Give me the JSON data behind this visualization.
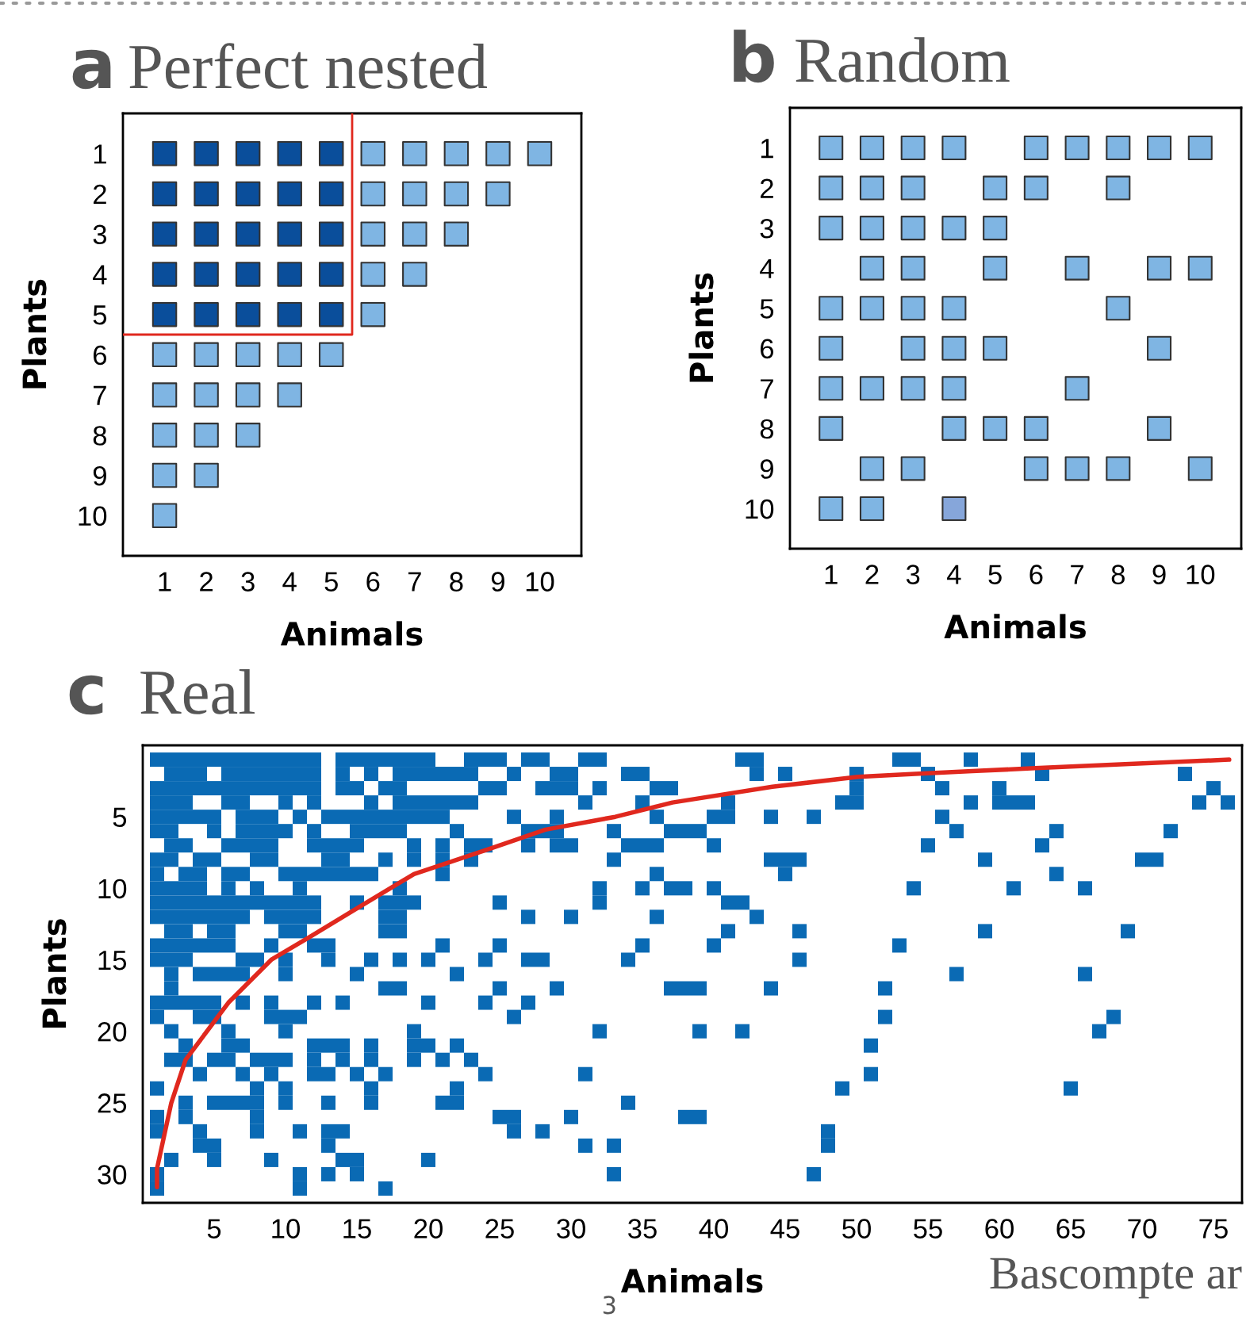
{
  "chart_data": [
    {
      "type": "scatter",
      "title": "Perfect nested",
      "xlabel": "Animals",
      "ylabel": "Plants",
      "annotations": [
        "a"
      ],
      "marker": "square",
      "grid": false,
      "xlim": [
        0,
        11
      ],
      "ylim": [
        11,
        0
      ],
      "xticks": [
        1,
        2,
        3,
        4,
        5,
        6,
        7,
        8,
        9,
        10
      ],
      "yticks": [
        1,
        2,
        3,
        4,
        5,
        6,
        7,
        8,
        9,
        10
      ],
      "series": [
        {
          "color": "#0a4e9b",
          "x": [
            1,
            2,
            3,
            4,
            5,
            1,
            2,
            3,
            4,
            5,
            1,
            2,
            3,
            4,
            5,
            1,
            2,
            3,
            4,
            5,
            1,
            2,
            3,
            4,
            5
          ],
          "values": [
            1,
            1,
            1,
            1,
            1,
            2,
            2,
            2,
            2,
            2,
            3,
            3,
            3,
            3,
            3,
            4,
            4,
            4,
            4,
            4,
            5,
            5,
            5,
            5,
            5
          ]
        },
        {
          "color": "#7fb5e3",
          "x": [
            6,
            7,
            8,
            9,
            10,
            6,
            7,
            8,
            9,
            6,
            7,
            8,
            6,
            7,
            6,
            1,
            2,
            3,
            4,
            5,
            1,
            2,
            3,
            4,
            1,
            2,
            3,
            1,
            2,
            1
          ],
          "values": [
            1,
            1,
            1,
            1,
            1,
            2,
            2,
            2,
            2,
            3,
            3,
            3,
            4,
            4,
            5,
            6,
            6,
            6,
            6,
            6,
            7,
            7,
            7,
            7,
            8,
            8,
            8,
            9,
            9,
            10
          ]
        },
        {
          "type": "line",
          "marker": "none",
          "color": "#e0281e",
          "x": [
            5.5,
            5.5,
            0
          ],
          "values": [
            0,
            5.5,
            5.5
          ]
        }
      ]
    },
    {
      "type": "scatter",
      "title": "Random",
      "xlabel": "Animals",
      "ylabel": "Plants",
      "annotations": [
        "b"
      ],
      "marker": "square",
      "grid": false,
      "xlim": [
        0,
        11
      ],
      "ylim": [
        11,
        0
      ],
      "xticks": [
        1,
        2,
        3,
        4,
        5,
        6,
        7,
        8,
        9,
        10
      ],
      "yticks": [
        1,
        2,
        3,
        4,
        5,
        6,
        7,
        8,
        9,
        10
      ],
      "series": [
        {
          "color": "#7fb5e3",
          "x": [
            1,
            2,
            3,
            4,
            6,
            7,
            8,
            9,
            10,
            1,
            2,
            3,
            5,
            6,
            8,
            1,
            2,
            3,
            4,
            5,
            2,
            3,
            5,
            7,
            9,
            10,
            1,
            2,
            3,
            4,
            8,
            1,
            3,
            4,
            5,
            9,
            1,
            2,
            3,
            4,
            7,
            1,
            4,
            5,
            6,
            9,
            2,
            3,
            6,
            7,
            8,
            10
          ],
          "values": [
            1,
            1,
            1,
            1,
            1,
            1,
            1,
            1,
            1,
            2,
            2,
            2,
            2,
            2,
            2,
            3,
            3,
            3,
            3,
            3,
            4,
            4,
            4,
            4,
            4,
            4,
            5,
            5,
            5,
            5,
            5,
            6,
            6,
            6,
            6,
            6,
            7,
            7,
            7,
            7,
            7,
            8,
            8,
            8,
            8,
            8,
            9,
            9,
            9,
            9,
            9,
            9
          ]
        },
        {
          "colors": [
            "#7fb5e3",
            "#7fb5e3",
            "#86a6da"
          ],
          "x": [
            1,
            2,
            4
          ],
          "values": [
            10,
            10,
            10
          ]
        }
      ]
    },
    {
      "type": "scatter",
      "title": "Real",
      "xlabel": "Animals",
      "ylabel": "Plants",
      "annotations": [
        "c",
        "3",
        "Bascompte ar"
      ],
      "marker": "square",
      "grid": false,
      "xlim": [
        0,
        77
      ],
      "ylim": [
        32,
        0
      ],
      "xticks": [
        5,
        10,
        15,
        20,
        25,
        30,
        35,
        40,
        45,
        50,
        55,
        60,
        65,
        70,
        75
      ],
      "yticks": [
        5,
        10,
        15,
        20,
        25,
        30
      ],
      "series": [
        {
          "color": "#0a6ab4",
          "x": [
            1,
            2,
            3,
            4,
            5,
            6,
            7,
            8,
            9,
            10,
            11,
            12,
            14,
            15,
            16,
            17,
            18,
            19,
            20,
            23,
            24,
            25,
            27,
            28,
            31,
            32,
            42,
            43,
            53,
            54,
            58,
            62
          ],
          "values": [
            1,
            1,
            1,
            1,
            1,
            1,
            1,
            1,
            1,
            1,
            1,
            1,
            1,
            1,
            1,
            1,
            1,
            1,
            1,
            1,
            1,
            1,
            1,
            1,
            1,
            1,
            1,
            1,
            1,
            1,
            1,
            1
          ]
        },
        {
          "color": "#0a6ab4",
          "x": [
            2,
            3,
            4,
            6,
            7,
            8,
            9,
            10,
            11,
            12,
            14,
            16,
            18,
            19,
            20,
            21,
            22,
            23,
            26,
            29,
            30,
            34,
            35,
            43,
            45,
            50,
            55,
            63,
            73
          ],
          "values": [
            2,
            2,
            2,
            2,
            2,
            2,
            2,
            2,
            2,
            2,
            2,
            2,
            2,
            2,
            2,
            2,
            2,
            2,
            2,
            2,
            2,
            2,
            2,
            2,
            2,
            2,
            2,
            2,
            2
          ]
        },
        {
          "color": "#0a6ab4",
          "x": [
            1,
            2,
            3,
            4,
            5,
            6,
            7,
            8,
            9,
            10,
            11,
            12,
            14,
            15,
            17,
            18,
            24,
            25,
            28,
            29,
            30,
            32,
            36,
            37,
            50,
            56,
            60,
            75
          ],
          "values": [
            3,
            3,
            3,
            3,
            3,
            3,
            3,
            3,
            3,
            3,
            3,
            3,
            3,
            3,
            3,
            3,
            3,
            3,
            3,
            3,
            3,
            3,
            3,
            3,
            3,
            3,
            3,
            3
          ]
        },
        {
          "color": "#0a6ab4",
          "x": [
            1,
            2,
            3,
            6,
            7,
            10,
            12,
            16,
            18,
            19,
            20,
            21,
            22,
            23,
            31,
            35,
            41,
            49,
            50,
            58,
            60,
            61,
            62,
            74,
            76
          ],
          "values": [
            4,
            4,
            4,
            4,
            4,
            4,
            4,
            4,
            4,
            4,
            4,
            4,
            4,
            4,
            4,
            4,
            4,
            4,
            4,
            4,
            4,
            4,
            4,
            4,
            4
          ]
        },
        {
          "color": "#0a6ab4",
          "x": [
            1,
            2,
            3,
            4,
            5,
            7,
            8,
            9,
            11,
            13,
            14,
            15,
            16,
            17,
            18,
            19,
            20,
            21,
            26,
            29,
            36,
            40,
            41,
            44,
            47,
            56
          ],
          "values": [
            5,
            5,
            5,
            5,
            5,
            5,
            5,
            5,
            5,
            5,
            5,
            5,
            5,
            5,
            5,
            5,
            5,
            5,
            5,
            5,
            5,
            5,
            5,
            5,
            5,
            5
          ]
        },
        {
          "color": "#0a6ab4",
          "x": [
            1,
            2,
            5,
            7,
            8,
            9,
            10,
            12,
            15,
            16,
            17,
            18,
            22,
            27,
            28,
            29,
            33,
            37,
            38,
            39,
            57,
            64,
            72
          ],
          "values": [
            6,
            6,
            6,
            6,
            6,
            6,
            6,
            6,
            6,
            6,
            6,
            6,
            6,
            6,
            6,
            6,
            6,
            6,
            6,
            6,
            6,
            6,
            6
          ]
        },
        {
          "color": "#0a6ab4",
          "x": [
            2,
            3,
            6,
            7,
            8,
            9,
            12,
            13,
            14,
            15,
            19,
            21,
            23,
            24,
            27,
            29,
            30,
            34,
            35,
            36,
            40,
            55,
            63
          ],
          "values": [
            7,
            7,
            7,
            7,
            7,
            7,
            7,
            7,
            7,
            7,
            7,
            7,
            7,
            7,
            7,
            7,
            7,
            7,
            7,
            7,
            7,
            7,
            7
          ]
        },
        {
          "color": "#0a6ab4",
          "x": [
            1,
            2,
            4,
            5,
            8,
            9,
            13,
            14,
            17,
            19,
            21,
            23,
            33,
            44,
            45,
            46,
            59,
            70,
            71
          ],
          "values": [
            8,
            8,
            8,
            8,
            8,
            8,
            8,
            8,
            8,
            8,
            8,
            8,
            8,
            8,
            8,
            8,
            8,
            8,
            8
          ]
        },
        {
          "color": "#0a6ab4",
          "x": [
            1,
            3,
            4,
            6,
            7,
            10,
            11,
            12,
            13,
            14,
            15,
            16,
            21,
            36,
            45,
            64
          ],
          "values": [
            9,
            9,
            9,
            9,
            9,
            9,
            9,
            9,
            9,
            9,
            9,
            9,
            9,
            9,
            9,
            9
          ]
        },
        {
          "color": "#0a6ab4",
          "x": [
            1,
            2,
            3,
            4,
            6,
            8,
            11,
            18,
            32,
            35,
            37,
            38,
            40,
            54,
            61,
            66
          ],
          "values": [
            10,
            10,
            10,
            10,
            10,
            10,
            10,
            10,
            10,
            10,
            10,
            10,
            10,
            10,
            10,
            10
          ]
        },
        {
          "color": "#0a6ab4",
          "x": [
            1,
            2,
            3,
            4,
            5,
            6,
            7,
            8,
            9,
            10,
            11,
            12,
            15,
            17,
            18,
            19,
            25,
            32,
            41,
            42
          ],
          "values": [
            11,
            11,
            11,
            11,
            11,
            11,
            11,
            11,
            11,
            11,
            11,
            11,
            11,
            11,
            11,
            11,
            11,
            11,
            11,
            11
          ]
        },
        {
          "color": "#0a6ab4",
          "x": [
            1,
            2,
            3,
            4,
            5,
            6,
            7,
            9,
            10,
            11,
            12,
            17,
            18,
            27,
            30,
            36,
            43
          ],
          "values": [
            12,
            12,
            12,
            12,
            12,
            12,
            12,
            12,
            12,
            12,
            12,
            12,
            12,
            12,
            12,
            12,
            12
          ]
        },
        {
          "color": "#0a6ab4",
          "x": [
            2,
            3,
            5,
            6,
            10,
            11,
            17,
            18,
            41,
            46,
            59,
            69
          ],
          "values": [
            13,
            13,
            13,
            13,
            13,
            13,
            13,
            13,
            13,
            13,
            13,
            13
          ]
        },
        {
          "color": "#0a6ab4",
          "x": [
            1,
            2,
            3,
            4,
            5,
            6,
            9,
            12,
            13,
            21,
            25,
            35,
            40,
            53
          ],
          "values": [
            14,
            14,
            14,
            14,
            14,
            14,
            14,
            14,
            14,
            14,
            14,
            14,
            14,
            14
          ]
        },
        {
          "color": "#0a6ab4",
          "x": [
            1,
            2,
            3,
            7,
            8,
            10,
            13,
            16,
            18,
            20,
            24,
            27,
            28,
            34,
            46
          ],
          "values": [
            15,
            15,
            15,
            15,
            15,
            15,
            15,
            15,
            15,
            15,
            15,
            15,
            15,
            15,
            15
          ]
        },
        {
          "color": "#0a6ab4",
          "x": [
            2,
            4,
            5,
            6,
            7,
            10,
            15,
            22,
            57,
            66
          ],
          "values": [
            16,
            16,
            16,
            16,
            16,
            16,
            16,
            16,
            16,
            16
          ]
        },
        {
          "color": "#0a6ab4",
          "x": [
            2,
            17,
            18,
            25,
            29,
            37,
            38,
            39,
            44,
            52
          ],
          "values": [
            17,
            17,
            17,
            17,
            17,
            17,
            17,
            17,
            17,
            17
          ]
        },
        {
          "color": "#0a6ab4",
          "x": [
            1,
            2,
            3,
            4,
            5,
            7,
            9,
            12,
            14,
            20,
            24,
            27
          ],
          "values": [
            18,
            18,
            18,
            18,
            18,
            18,
            18,
            18,
            18,
            18,
            18,
            18
          ]
        },
        {
          "color": "#0a6ab4",
          "x": [
            1,
            4,
            5,
            9,
            10,
            11,
            26,
            52,
            68
          ],
          "values": [
            19,
            19,
            19,
            19,
            19,
            19,
            19,
            19,
            19
          ]
        },
        {
          "color": "#0a6ab4",
          "x": [
            2,
            6,
            10,
            19,
            32,
            39,
            42,
            67
          ],
          "values": [
            20,
            20,
            20,
            20,
            20,
            20,
            20,
            20
          ]
        },
        {
          "color": "#0a6ab4",
          "x": [
            3,
            6,
            7,
            12,
            13,
            14,
            16,
            19,
            20,
            22,
            51
          ],
          "values": [
            21,
            21,
            21,
            21,
            21,
            21,
            21,
            21,
            21,
            21,
            21
          ]
        },
        {
          "color": "#0a6ab4",
          "x": [
            2,
            3,
            5,
            6,
            8,
            9,
            10,
            12,
            14,
            16,
            19,
            21,
            23
          ],
          "values": [
            22,
            22,
            22,
            22,
            22,
            22,
            22,
            22,
            22,
            22,
            22,
            22,
            22
          ]
        },
        {
          "color": "#0a6ab4",
          "x": [
            4,
            7,
            9,
            12,
            13,
            15,
            17,
            24,
            31,
            51
          ],
          "values": [
            23,
            23,
            23,
            23,
            23,
            23,
            23,
            23,
            23,
            23
          ]
        },
        {
          "color": "#0a6ab4",
          "x": [
            1,
            8,
            10,
            16,
            22,
            49,
            65
          ],
          "values": [
            24,
            24,
            24,
            24,
            24,
            24,
            24
          ]
        },
        {
          "color": "#0a6ab4",
          "x": [
            3,
            5,
            6,
            7,
            8,
            10,
            13,
            16,
            21,
            22,
            34
          ],
          "values": [
            25,
            25,
            25,
            25,
            25,
            25,
            25,
            25,
            25,
            25,
            25
          ]
        },
        {
          "color": "#0a6ab4",
          "x": [
            1,
            3,
            8,
            25,
            26,
            30,
            38,
            39
          ],
          "values": [
            26,
            26,
            26,
            26,
            26,
            26,
            26,
            26
          ]
        },
        {
          "color": "#0a6ab4",
          "x": [
            1,
            4,
            8,
            11,
            13,
            14,
            26,
            28,
            48
          ],
          "values": [
            27,
            27,
            27,
            27,
            27,
            27,
            27,
            27,
            27
          ]
        },
        {
          "color": "#0a6ab4",
          "x": [
            4,
            5,
            13,
            31,
            33,
            48
          ],
          "values": [
            28,
            28,
            28,
            28,
            28,
            28
          ]
        },
        {
          "color": "#0a6ab4",
          "x": [
            2,
            5,
            9,
            14,
            15,
            20
          ],
          "values": [
            29,
            29,
            29,
            29,
            29,
            29
          ]
        },
        {
          "color": "#0a6ab4",
          "x": [
            1,
            11,
            13,
            15,
            33,
            47
          ],
          "values": [
            30,
            30,
            30,
            30,
            30,
            30
          ]
        },
        {
          "color": "#0a6ab4",
          "x": [
            1,
            11,
            17
          ],
          "values": [
            31,
            31,
            31
          ]
        },
        {
          "type": "line",
          "marker": "none",
          "color": "#e0281e",
          "x": [
            1,
            1,
            2,
            3,
            6,
            9,
            11.7,
            15,
            19,
            24.4,
            28.2,
            33.1,
            37.1,
            44.1,
            50.1,
            54.1,
            58.1,
            62.5,
            76.1
          ],
          "values": [
            30.9,
            29.6,
            25,
            22,
            18,
            15,
            13.4,
            11.4,
            9,
            7.2,
            5.9,
            5,
            4,
            2.9,
            2.2,
            2,
            1.8,
            1.6,
            1
          ]
        }
      ]
    }
  ]
}
